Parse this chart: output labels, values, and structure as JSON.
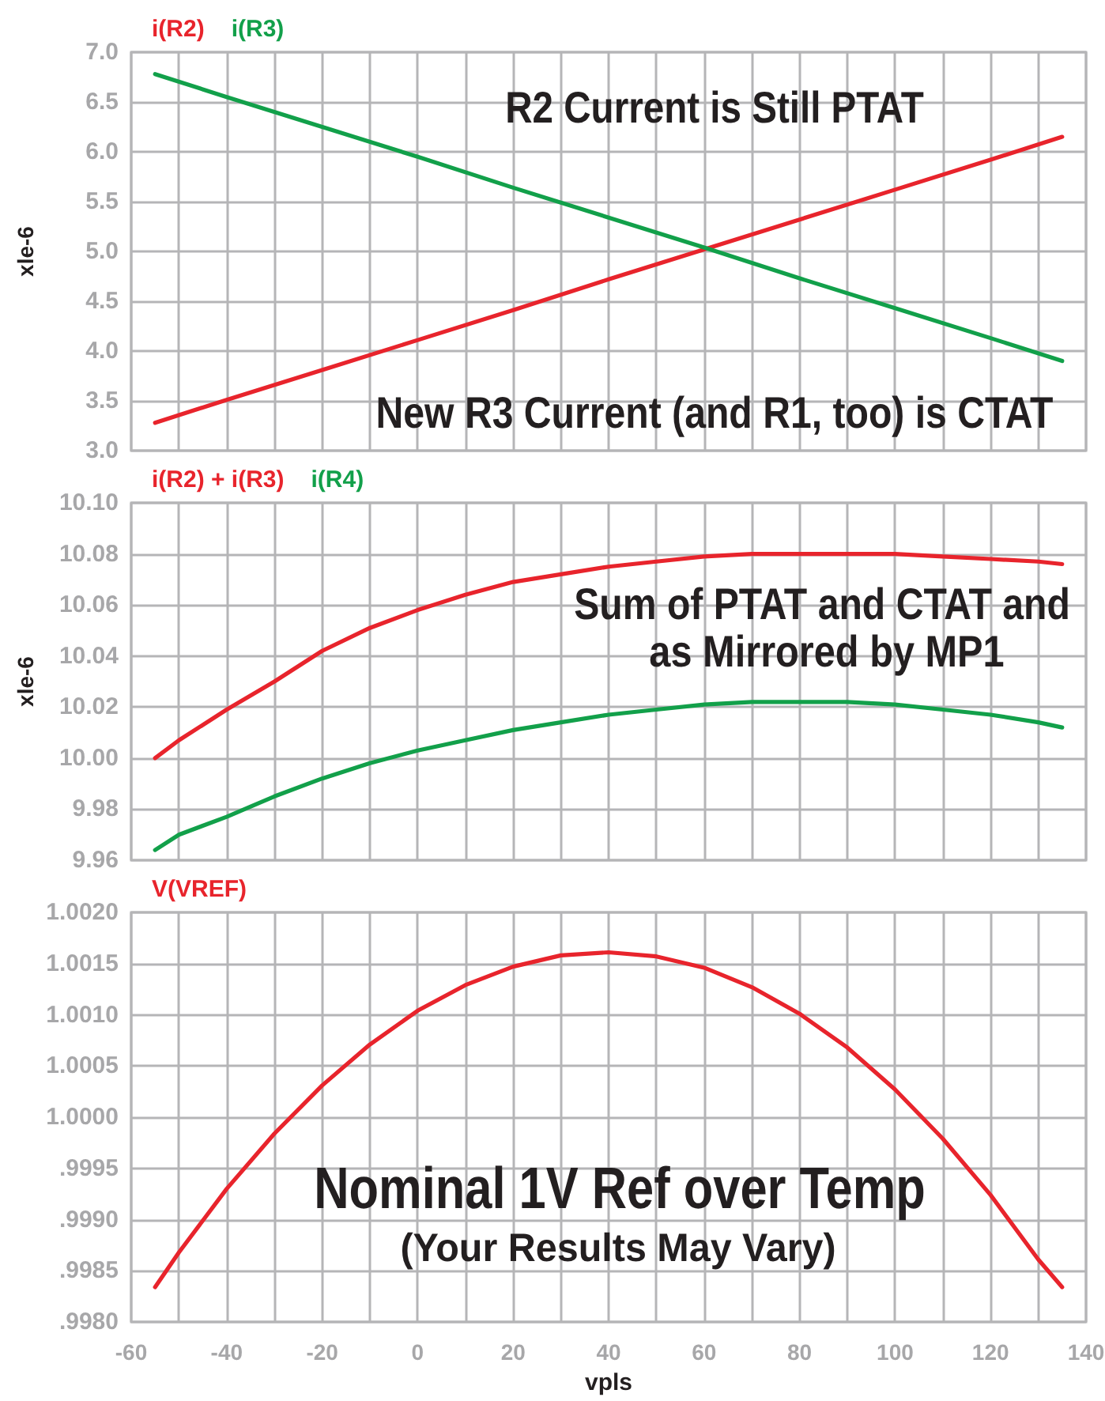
{
  "chart_data": [
    {
      "type": "line",
      "xlim": [
        -60,
        140
      ],
      "xticks": [
        -60,
        {
          "value": -50,
          "label": null
        },
        -40,
        {
          "value": -30,
          "label": null
        },
        -20,
        {
          "value": -10,
          "label": null
        },
        0,
        {
          "value": 10,
          "label": null
        },
        20,
        {
          "value": 30,
          "label": null
        },
        40,
        {
          "value": 50,
          "label": null
        },
        60,
        {
          "value": 70,
          "label": null
        },
        80,
        {
          "value": 90,
          "label": null
        },
        100,
        {
          "value": 110,
          "label": null
        },
        120,
        {
          "value": 130,
          "label": null
        },
        140
      ],
      "ylim": [
        3,
        7
      ],
      "yticks": [
        {
          "value": 3,
          "label": "3.0"
        },
        3.5,
        {
          "value": 4,
          "label": "4.0"
        },
        4.5,
        {
          "value": 5,
          "label": "5.0"
        },
        5.5,
        {
          "value": 6,
          "label": "6.0"
        },
        6.5,
        {
          "value": 7,
          "label": "7.0"
        }
      ],
      "ylabel": "xle-6",
      "tick_labels": "y",
      "grid": true,
      "legend": "top left",
      "marker": "none",
      "x": [
        -55,
        -40,
        -20,
        0,
        20,
        40,
        60,
        80,
        100,
        120,
        135
      ],
      "series": [
        {
          "name": "i(R2)",
          "color": "#e8242c",
          "values": [
            3.28,
            3.51,
            3.81,
            4.11,
            4.41,
            4.72,
            5.02,
            5.32,
            5.62,
            5.92,
            6.15
          ]
        },
        {
          "name": "i(R3)",
          "color": "#12a04a",
          "values": [
            6.78,
            6.55,
            6.25,
            5.95,
            5.64,
            5.34,
            5.04,
            4.73,
            4.43,
            4.13,
            3.9
          ]
        }
      ],
      "annotations": [
        "R2 Current is Still PTAT",
        "New R3 Current (and R1, too) is CTAT"
      ]
    },
    {
      "type": "line",
      "xlim": [
        -60,
        140
      ],
      "xticks": [
        -60,
        {
          "value": -50,
          "label": null
        },
        -40,
        {
          "value": -30,
          "label": null
        },
        -20,
        {
          "value": -10,
          "label": null
        },
        0,
        {
          "value": 10,
          "label": null
        },
        20,
        {
          "value": 30,
          "label": null
        },
        40,
        {
          "value": 50,
          "label": null
        },
        60,
        {
          "value": 70,
          "label": null
        },
        80,
        {
          "value": 90,
          "label": null
        },
        100,
        {
          "value": 110,
          "label": null
        },
        120,
        {
          "value": 130,
          "label": null
        },
        140
      ],
      "ylim": [
        9.96,
        10.1
      ],
      "yticks": [
        9.96,
        9.98,
        {
          "value": 10,
          "label": "10.00"
        },
        10.02,
        10.04,
        10.06,
        10.08,
        {
          "value": 10.1,
          "label": "10.10"
        }
      ],
      "ylabel": "xle-6",
      "tick_labels": "y",
      "grid": true,
      "legend": "top left",
      "marker": "none",
      "x": [
        -55,
        -50,
        -40,
        -30,
        -20,
        -10,
        0,
        10,
        20,
        30,
        40,
        50,
        60,
        70,
        80,
        90,
        100,
        110,
        120,
        130,
        135
      ],
      "series": [
        {
          "name": "i(R2) + i(R3)",
          "color": "#e8242c",
          "values": [
            10.0,
            10.007,
            10.019,
            10.03,
            10.042,
            10.051,
            10.058,
            10.064,
            10.069,
            10.072,
            10.075,
            10.077,
            10.079,
            10.08,
            10.08,
            10.08,
            10.08,
            10.079,
            10.078,
            10.077,
            10.076
          ]
        },
        {
          "name": "i(R4)",
          "color": "#12a04a",
          "values": [
            9.964,
            9.97,
            9.977,
            9.985,
            9.992,
            9.998,
            10.003,
            10.007,
            10.011,
            10.014,
            10.017,
            10.019,
            10.021,
            10.022,
            10.022,
            10.022,
            10.021,
            10.019,
            10.017,
            10.014,
            10.012
          ]
        }
      ],
      "annotations": [
        "Sum of PTAT and CTAT and",
        "as Mirrored by MP1"
      ]
    },
    {
      "type": "line",
      "xlim": [
        -60,
        140
      ],
      "xticks": [
        -60,
        {
          "value": -50,
          "label": null
        },
        -40,
        {
          "value": -30,
          "label": null
        },
        -20,
        {
          "value": -10,
          "label": null
        },
        0,
        {
          "value": 10,
          "label": null
        },
        20,
        {
          "value": 30,
          "label": null
        },
        40,
        {
          "value": 50,
          "label": null
        },
        60,
        {
          "value": 70,
          "label": null
        },
        80,
        {
          "value": 90,
          "label": null
        },
        100,
        {
          "value": 110,
          "label": null
        },
        120,
        {
          "value": 130,
          "label": null
        },
        140
      ],
      "ylim": [
        0.998,
        1.002
      ],
      "yticks": [
        {
          "value": 0.998,
          "label": ".9980"
        },
        {
          "value": 0.9985,
          "label": ".9985"
        },
        {
          "value": 0.999,
          "label": ".9990"
        },
        {
          "value": 0.9995,
          "label": ".9995"
        },
        {
          "value": 1,
          "label": "1.0000"
        },
        {
          "value": 1.0005,
          "label": "1.0005"
        },
        {
          "value": 1.001,
          "label": "1.0010"
        },
        {
          "value": 1.0015,
          "label": "1.0015"
        },
        {
          "value": 1.002,
          "label": "1.0020"
        }
      ],
      "xlabel": "vpls",
      "grid": true,
      "legend": "top left",
      "marker": "none",
      "x": [
        -55,
        -50,
        -40,
        -30,
        -20,
        -10,
        0,
        10,
        20,
        30,
        40,
        50,
        60,
        70,
        80,
        90,
        100,
        110,
        120,
        130,
        135
      ],
      "series": [
        {
          "name": "V(VREF)",
          "color": "#e8242c",
          "values": [
            0.99834,
            0.99868,
            0.9993,
            0.99984,
            1.00031,
            1.00071,
            1.00104,
            1.00129,
            1.00147,
            1.00158,
            1.00161,
            1.00157,
            1.00146,
            1.00127,
            1.00101,
            1.00068,
            1.00027,
            0.99979,
            0.99924,
            0.99861,
            0.99834
          ]
        }
      ],
      "annotations": [
        "Nominal 1V Ref over Temp",
        "(Your Results May Vary)"
      ]
    }
  ]
}
